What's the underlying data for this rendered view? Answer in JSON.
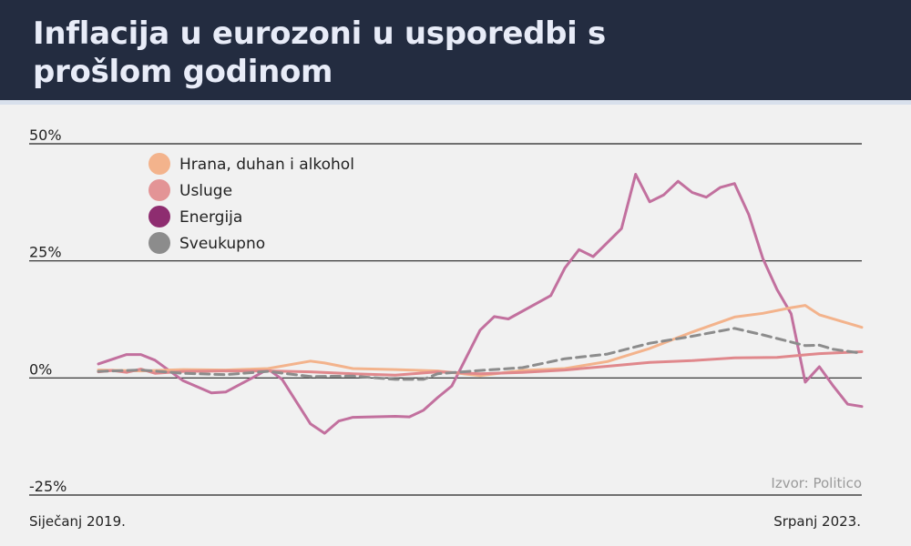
{
  "header": {
    "title": "Inflacija u eurozoni u usporedbi s prošlom godinom",
    "background": "#232c40"
  },
  "source": "Izvor: Politico",
  "x_start_label": "Siječanj 2019.",
  "x_end_label": "Srpanj 2023.",
  "chart_data": {
    "type": "line",
    "x_range": [
      "2019-01",
      "2023-07"
    ],
    "ylim": [
      -25,
      50
    ],
    "y_ticks": [
      {
        "value": 50,
        "label": "50%"
      },
      {
        "value": 25,
        "label": "25%"
      },
      {
        "value": 0,
        "label": "0%"
      },
      {
        "value": -25,
        "label": "-25%"
      }
    ],
    "grid": true,
    "legend": "top-left",
    "series": [
      {
        "name": "Hrana, duhan i alkohol",
        "color": "#f3b38c",
        "dash": false,
        "points": [
          [
            "2019-01",
            1.7
          ],
          [
            "2019-04",
            1.5
          ],
          [
            "2019-07",
            1.8
          ],
          [
            "2019-10",
            1.7
          ],
          [
            "2020-01",
            2.0
          ],
          [
            "2020-04",
            3.6
          ],
          [
            "2020-05",
            3.2
          ],
          [
            "2020-07",
            2.0
          ],
          [
            "2020-10",
            1.8
          ],
          [
            "2021-01",
            1.5
          ],
          [
            "2021-04",
            0.5
          ],
          [
            "2021-07",
            1.6
          ],
          [
            "2021-10",
            2.0
          ],
          [
            "2022-01",
            3.5
          ],
          [
            "2022-04",
            6.3
          ],
          [
            "2022-07",
            9.8
          ],
          [
            "2022-10",
            13.0
          ],
          [
            "2022-12",
            13.8
          ],
          [
            "2023-02",
            15.0
          ],
          [
            "2023-03",
            15.5
          ],
          [
            "2023-04",
            13.5
          ],
          [
            "2023-07",
            10.8
          ]
        ]
      },
      {
        "name": "Usluge",
        "color": "#e0888c",
        "dash": false,
        "points": [
          [
            "2019-01",
            1.3
          ],
          [
            "2019-02",
            1.6
          ],
          [
            "2019-03",
            1.2
          ],
          [
            "2019-04",
            1.9
          ],
          [
            "2019-05",
            1.0
          ],
          [
            "2019-07",
            1.4
          ],
          [
            "2019-10",
            1.5
          ],
          [
            "2020-01",
            1.5
          ],
          [
            "2020-04",
            1.3
          ],
          [
            "2020-07",
            0.9
          ],
          [
            "2020-10",
            0.6
          ],
          [
            "2021-01",
            1.3
          ],
          [
            "2021-04",
            0.9
          ],
          [
            "2021-07",
            1.2
          ],
          [
            "2021-10",
            1.7
          ],
          [
            "2022-01",
            2.5
          ],
          [
            "2022-04",
            3.3
          ],
          [
            "2022-07",
            3.7
          ],
          [
            "2022-10",
            4.3
          ],
          [
            "2023-01",
            4.4
          ],
          [
            "2023-04",
            5.2
          ],
          [
            "2023-07",
            5.6
          ]
        ]
      },
      {
        "name": "Energija",
        "color": "#c2709e",
        "dash": false,
        "points": [
          [
            "2019-01",
            3.0
          ],
          [
            "2019-03",
            5.0
          ],
          [
            "2019-04",
            5.0
          ],
          [
            "2019-05",
            3.8
          ],
          [
            "2019-07",
            -0.6
          ],
          [
            "2019-09",
            -3.2
          ],
          [
            "2019-10",
            -3.0
          ],
          [
            "2019-12",
            0.2
          ],
          [
            "2020-01",
            1.9
          ],
          [
            "2020-02",
            -0.3
          ],
          [
            "2020-04",
            -9.8
          ],
          [
            "2020-05",
            -11.8
          ],
          [
            "2020-06",
            -9.2
          ],
          [
            "2020-07",
            -8.4
          ],
          [
            "2020-10",
            -8.2
          ],
          [
            "2020-11",
            -8.3
          ],
          [
            "2020-12",
            -6.9
          ],
          [
            "2021-01",
            -4.2
          ],
          [
            "2021-02",
            -1.7
          ],
          [
            "2021-04",
            10.2
          ],
          [
            "2021-05",
            13.1
          ],
          [
            "2021-06",
            12.6
          ],
          [
            "2021-09",
            17.6
          ],
          [
            "2021-10",
            23.5
          ],
          [
            "2021-11",
            27.4
          ],
          [
            "2021-12",
            25.9
          ],
          [
            "2022-02",
            31.9
          ],
          [
            "2022-03",
            43.5
          ],
          [
            "2022-04",
            37.6
          ],
          [
            "2022-05",
            39.1
          ],
          [
            "2022-06",
            42.0
          ],
          [
            "2022-07",
            39.6
          ],
          [
            "2022-08",
            38.6
          ],
          [
            "2022-09",
            40.7
          ],
          [
            "2022-10",
            41.5
          ],
          [
            "2022-11",
            34.9
          ],
          [
            "2022-12",
            25.5
          ],
          [
            "2023-01",
            18.9
          ],
          [
            "2023-02",
            13.7
          ],
          [
            "2023-03",
            -0.9
          ],
          [
            "2023-04",
            2.4
          ],
          [
            "2023-05",
            -1.8
          ],
          [
            "2023-06",
            -5.6
          ],
          [
            "2023-07",
            -6.1
          ]
        ]
      },
      {
        "name": "Sveukupno",
        "color": "#8c8c8c",
        "dash": true,
        "points": [
          [
            "2019-01",
            1.4
          ],
          [
            "2019-04",
            1.7
          ],
          [
            "2019-07",
            1.0
          ],
          [
            "2019-10",
            0.7
          ],
          [
            "2020-01",
            1.4
          ],
          [
            "2020-04",
            0.3
          ],
          [
            "2020-07",
            0.4
          ],
          [
            "2020-10",
            -0.3
          ],
          [
            "2020-12",
            -0.3
          ],
          [
            "2021-01",
            0.9
          ],
          [
            "2021-04",
            1.6
          ],
          [
            "2021-07",
            2.2
          ],
          [
            "2021-10",
            4.1
          ],
          [
            "2022-01",
            5.1
          ],
          [
            "2022-04",
            7.4
          ],
          [
            "2022-07",
            8.9
          ],
          [
            "2022-10",
            10.6
          ],
          [
            "2022-12",
            9.2
          ],
          [
            "2023-03",
            6.9
          ],
          [
            "2023-04",
            7.0
          ],
          [
            "2023-05",
            6.1
          ],
          [
            "2023-07",
            5.3
          ]
        ]
      }
    ]
  }
}
